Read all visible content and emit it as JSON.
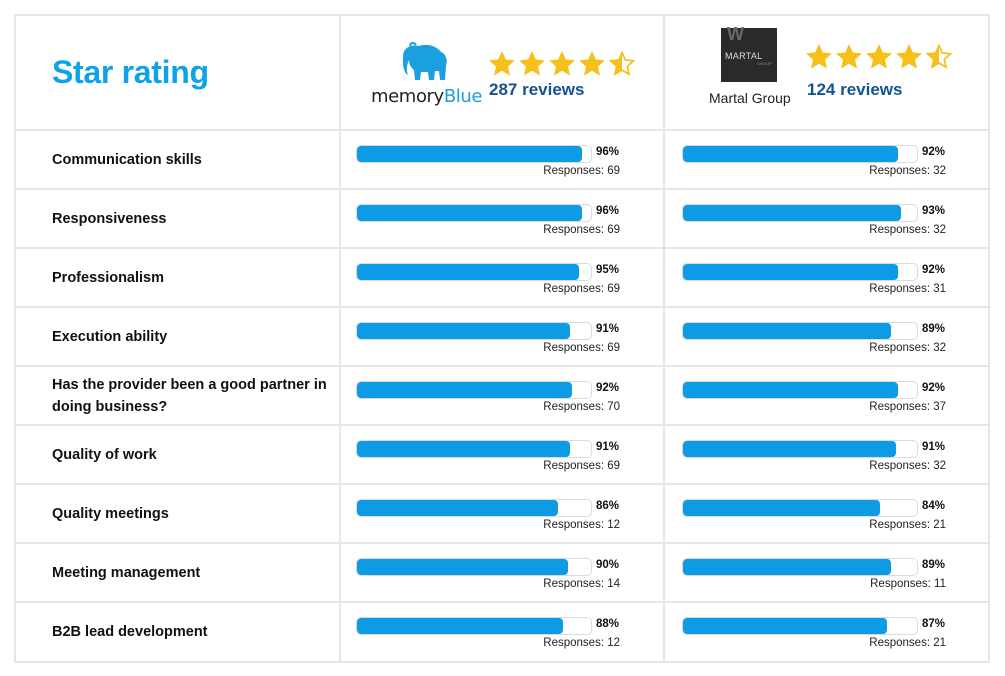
{
  "title": "Star rating",
  "colors": {
    "title": "#0ea2e8",
    "bar": "#0d9be5",
    "reviews": "#13548f",
    "star": "#f5c01a",
    "grid": "#e6e6e6"
  },
  "providers": [
    {
      "logo_text_a": "memory",
      "logo_text_b": "Blue",
      "logo_icon": "elephant-icon",
      "rating": 4.5,
      "reviews": "287 reviews"
    },
    {
      "logo_box_text": "MARTAL",
      "logo_box_small": "GROUP",
      "logo_box_w": "W",
      "logo_text": "Martal Group",
      "rating": 4.5,
      "reviews": "124 reviews"
    }
  ],
  "chart_data": {
    "type": "bar",
    "title": "Star rating",
    "xlim": [
      0,
      100
    ],
    "categories": [
      "Communication skills",
      "Responsiveness",
      "Professionalism",
      "Execution ability",
      "Has the provider been a good partner in doing business?",
      "Quality of work",
      "Quality meetings",
      "Meeting management",
      "B2B lead development"
    ],
    "series": [
      {
        "name": "memoryBlue",
        "values": [
          96,
          96,
          95,
          91,
          92,
          91,
          86,
          90,
          88
        ],
        "labels": [
          "96%",
          "96%",
          "95%",
          "91%",
          "92%",
          "91%",
          "86%",
          "90%",
          "88%"
        ],
        "responses": [
          "Responses: 69",
          "Responses: 69",
          "Responses: 69",
          "Responses: 69",
          "Responses: 70",
          "Responses: 69",
          "Responses: 12",
          "Responses: 14",
          "Responses: 12"
        ]
      },
      {
        "name": "Martal Group",
        "values": [
          92,
          93,
          92,
          89,
          92,
          91,
          84,
          89,
          87
        ],
        "labels": [
          "92%",
          "93%",
          "92%",
          "89%",
          "92%",
          "91%",
          "84%",
          "89%",
          "87%"
        ],
        "responses": [
          "Responses: 32",
          "Responses: 32",
          "Responses: 31",
          "Responses: 32",
          "Responses: 37",
          "Responses: 32",
          "Responses: 21",
          "Responses: 11",
          "Responses: 21"
        ]
      }
    ]
  }
}
